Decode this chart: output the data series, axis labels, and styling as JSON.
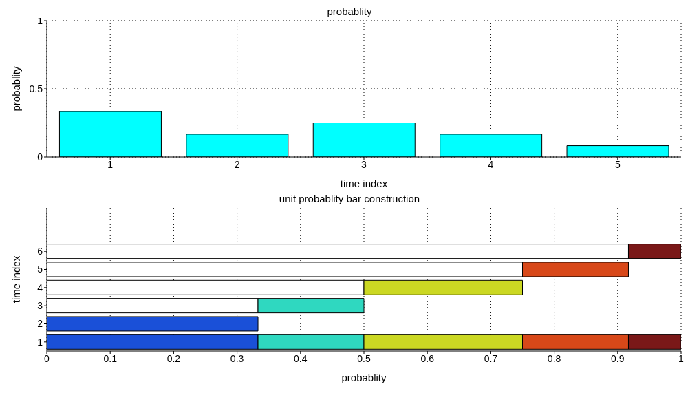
{
  "chart_data": [
    {
      "type": "bar",
      "title": "probablity",
      "xlabel": "time index",
      "ylabel": "probablity",
      "categories": [
        "1",
        "2",
        "3",
        "4",
        "5"
      ],
      "values": [
        0.333,
        0.167,
        0.25,
        0.167,
        0.083
      ],
      "color": "#00ffff",
      "ylim": [
        0,
        1
      ],
      "yticks": [
        0,
        0.5,
        1
      ],
      "grid": true
    },
    {
      "type": "bar",
      "title": "unit probablity bar construction",
      "xlabel": "probablity",
      "ylabel": "time index",
      "orientation": "horizontal",
      "stacked": true,
      "categories": [
        "6",
        "5",
        "4",
        "3",
        "2",
        "1"
      ],
      "series": [
        {
          "color": "#ffffff",
          "values": [
            0.917,
            0.75,
            0.5,
            0.333,
            null,
            null
          ]
        },
        {
          "color": "#1a50d8",
          "values": [
            null,
            null,
            null,
            null,
            0.333,
            0.333
          ]
        },
        {
          "color": "#2fd8c0",
          "values": [
            null,
            null,
            null,
            0.167,
            null,
            0.167
          ]
        },
        {
          "color": "#cbd823",
          "values": [
            null,
            null,
            0.25,
            null,
            null,
            0.25
          ]
        },
        {
          "color": "#d84819",
          "values": [
            null,
            0.167,
            null,
            null,
            null,
            0.167
          ]
        },
        {
          "color": "#7a1818",
          "values": [
            0.083,
            null,
            null,
            null,
            null,
            0.083
          ]
        }
      ],
      "xlim": [
        0,
        1
      ],
      "xticks": [
        0,
        0.1,
        0.2,
        0.3,
        0.4,
        0.5,
        0.6,
        0.7,
        0.8,
        0.9,
        1
      ],
      "grid": "x"
    }
  ]
}
